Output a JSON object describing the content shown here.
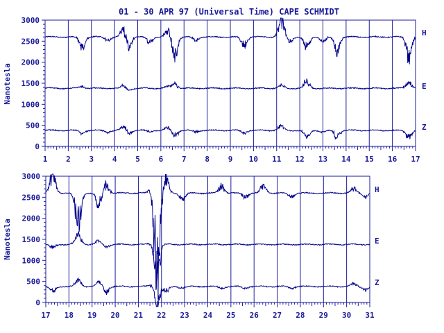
{
  "title": "01 - 30 APR 97 (Universal Time) CAPE SCHMIDT",
  "colors": {
    "ink": "#1a1a9a",
    "trace": "#00008b",
    "background": "#ffffff"
  },
  "chart_data": [
    {
      "type": "line",
      "xlabel": "",
      "ylabel": "Nanotesla",
      "x_ticks": [
        "1",
        "2",
        "3",
        "4",
        "5",
        "6",
        "7",
        "8",
        "9",
        "10",
        "11",
        "12",
        "13",
        "14",
        "15",
        "16",
        "17"
      ],
      "xlim": [
        1,
        17
      ],
      "ylim": [
        0,
        3000
      ],
      "y_ticks": [
        "0",
        "500",
        "1000",
        "1500",
        "2000",
        "2500",
        "3000"
      ],
      "grid": "vertical lines at each day",
      "series": [
        {
          "name": "H",
          "baseline": 2600
        },
        {
          "name": "E",
          "baseline": 1380
        },
        {
          "name": "Z",
          "baseline": 380
        }
      ]
    },
    {
      "type": "line",
      "xlabel": "",
      "ylabel": "Nanotesla",
      "x_ticks": [
        "17",
        "18",
        "19",
        "20",
        "21",
        "22",
        "23",
        "24",
        "25",
        "26",
        "27",
        "28",
        "29",
        "30",
        "31"
      ],
      "xlim": [
        17,
        31
      ],
      "ylim": [
        0,
        3000
      ],
      "y_ticks": [
        "0",
        "500",
        "1000",
        "1500",
        "2000",
        "2500",
        "3000"
      ],
      "grid": "vertical lines at each day",
      "series": [
        {
          "name": "H",
          "baseline": 2600
        },
        {
          "name": "E",
          "baseline": 1380
        },
        {
          "name": "Z",
          "baseline": 380
        }
      ]
    }
  ],
  "disturbances": [
    [
      {
        "day": 2.6,
        "H": -250,
        "E": 40,
        "Z": -60
      },
      {
        "day": 3.7,
        "H": -80,
        "E": 0,
        "Z": -40
      },
      {
        "day": 4.4,
        "H": 200,
        "E": 60,
        "Z": 100
      },
      {
        "day": 4.6,
        "H": -250,
        "E": -40,
        "Z": -80
      },
      {
        "day": 5.5,
        "H": -120,
        "E": 0,
        "Z": -30
      },
      {
        "day": 6.3,
        "H": 150,
        "E": 40,
        "Z": 60
      },
      {
        "day": 6.6,
        "H": -450,
        "E": 90,
        "Z": -120
      },
      {
        "day": 7.5,
        "H": -80,
        "E": 0,
        "Z": -40
      },
      {
        "day": 9.6,
        "H": -200,
        "E": 0,
        "Z": -60
      },
      {
        "day": 11.2,
        "H": 420,
        "E": 60,
        "Z": 100
      },
      {
        "day": 11.6,
        "H": -100,
        "E": 0,
        "Z": 0
      },
      {
        "day": 12.3,
        "H": -250,
        "E": 150,
        "Z": -140
      },
      {
        "day": 13.0,
        "H": -100,
        "E": 0,
        "Z": -40
      },
      {
        "day": 13.6,
        "H": -300,
        "E": 0,
        "Z": -160
      },
      {
        "day": 16.7,
        "H": -400,
        "E": 140,
        "Z": -150
      }
    ],
    [
      {
        "day": 17.3,
        "H": 400,
        "E": -80,
        "Z": -120
      },
      {
        "day": 18.4,
        "H": -700,
        "E": 220,
        "Z": 150
      },
      {
        "day": 19.3,
        "H": -300,
        "E": 80,
        "Z": 100
      },
      {
        "day": 19.6,
        "H": 200,
        "E": -60,
        "Z": -120
      },
      {
        "day": 21.6,
        "H": 150,
        "E": 50,
        "Z": 60
      },
      {
        "day": 21.8,
        "H": -1800,
        "E": -700,
        "Z": -400
      },
      {
        "day": 22.2,
        "H": 300,
        "E": 0,
        "Z": -100
      },
      {
        "day": 22.9,
        "H": -150,
        "E": 0,
        "Z": -40
      },
      {
        "day": 24.6,
        "H": 150,
        "E": 0,
        "Z": -40
      },
      {
        "day": 25.6,
        "H": -100,
        "E": 0,
        "Z": -40
      },
      {
        "day": 26.4,
        "H": 150,
        "E": 0,
        "Z": 0
      },
      {
        "day": 27.6,
        "H": -80,
        "E": 0,
        "Z": -40
      },
      {
        "day": 30.3,
        "H": 100,
        "E": 0,
        "Z": 60
      },
      {
        "day": 30.8,
        "H": -80,
        "E": 0,
        "Z": -80
      }
    ]
  ]
}
